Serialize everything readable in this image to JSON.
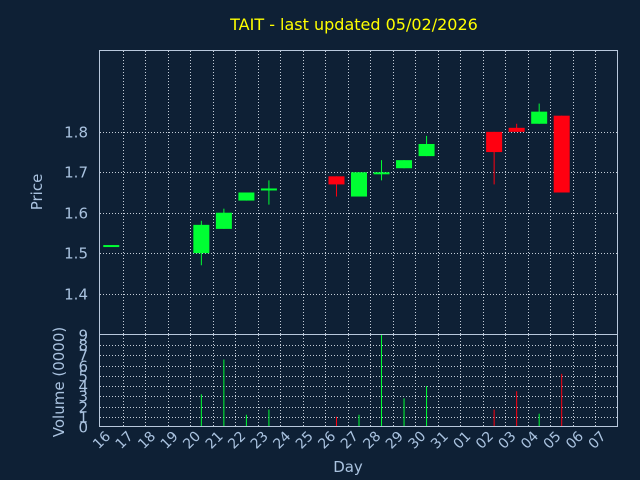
{
  "chart_data": {
    "type": "candlestick",
    "title": "TAIT - last updated 05/02/2026",
    "price_axis": {
      "label": "Price",
      "ylim": [
        1.3,
        2.0
      ],
      "ticks": [
        1.4,
        1.5,
        1.6,
        1.7,
        1.8
      ]
    },
    "volume_axis": {
      "label": "Volume (0000)",
      "ylim": [
        0,
        9
      ],
      "ticks": [
        0,
        1,
        2,
        3,
        4,
        5,
        6,
        7,
        8,
        9
      ]
    },
    "xlabel": "Day",
    "categories": [
      "16",
      "17",
      "18",
      "19",
      "20",
      "21",
      "22",
      "23",
      "24",
      "25",
      "26",
      "27",
      "28",
      "29",
      "30",
      "31",
      "01",
      "02",
      "03",
      "04",
      "05",
      "06",
      "07"
    ],
    "grid": true,
    "colors": {
      "up": "#00ff33",
      "down": "#ff0010",
      "background": "#0e2035"
    },
    "candles": [
      {
        "day": "16",
        "open": 1.52,
        "high": 1.52,
        "low": 1.52,
        "close": 1.52,
        "volume": 0
      },
      {
        "day": "20",
        "open": 1.5,
        "high": 1.58,
        "low": 1.47,
        "close": 1.57,
        "volume": 3.2
      },
      {
        "day": "21",
        "open": 1.56,
        "high": 1.61,
        "low": 1.56,
        "close": 1.6,
        "volume": 6.6
      },
      {
        "day": "22",
        "open": 1.63,
        "high": 1.65,
        "low": 1.63,
        "close": 1.65,
        "volume": 1.2
      },
      {
        "day": "23",
        "open": 1.655,
        "high": 1.68,
        "low": 1.62,
        "close": 1.66,
        "volume": 1.7
      },
      {
        "day": "26",
        "open": 1.69,
        "high": 1.69,
        "low": 1.64,
        "close": 1.67,
        "volume": 1.0
      },
      {
        "day": "27",
        "open": 1.64,
        "high": 1.7,
        "low": 1.64,
        "close": 1.7,
        "volume": 1.2
      },
      {
        "day": "28",
        "open": 1.695,
        "high": 1.73,
        "low": 1.68,
        "close": 1.7,
        "volume": 9.0
      },
      {
        "day": "29",
        "open": 1.71,
        "high": 1.73,
        "low": 1.71,
        "close": 1.73,
        "volume": 2.8
      },
      {
        "day": "30",
        "open": 1.74,
        "high": 1.79,
        "low": 1.74,
        "close": 1.77,
        "volume": 4.0
      },
      {
        "day": "02",
        "open": 1.8,
        "high": 1.8,
        "low": 1.67,
        "close": 1.75,
        "volume": 1.7
      },
      {
        "day": "03",
        "open": 1.81,
        "high": 1.82,
        "low": 1.8,
        "close": 1.8,
        "volume": 3.5
      },
      {
        "day": "04",
        "open": 1.82,
        "high": 1.87,
        "low": 1.82,
        "close": 1.85,
        "volume": 1.3
      },
      {
        "day": "05",
        "open": 1.84,
        "high": 1.84,
        "low": 1.65,
        "close": 1.65,
        "volume": 5.2
      }
    ]
  }
}
